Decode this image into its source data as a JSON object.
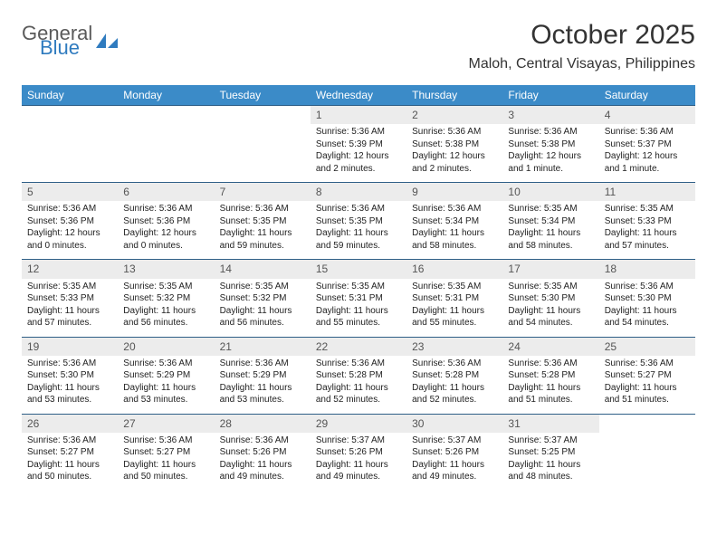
{
  "brand": {
    "text_general": "General",
    "text_blue": "Blue",
    "icon_color": "#2f7bbf",
    "text_general_color": "#5a5a5a",
    "text_blue_color": "#2f7bbf"
  },
  "title": "October 2025",
  "location": "Maloh, Central Visayas, Philippines",
  "colors": {
    "header_bg": "#3b8bc8",
    "header_text": "#ffffff",
    "daynum_bg": "#ececec",
    "daynum_text": "#555555",
    "row_border": "#2f5f87",
    "body_text": "#222222",
    "page_bg": "#ffffff"
  },
  "day_headers": [
    "Sunday",
    "Monday",
    "Tuesday",
    "Wednesday",
    "Thursday",
    "Friday",
    "Saturday"
  ],
  "weeks": [
    {
      "nums": [
        "",
        "",
        "",
        "1",
        "2",
        "3",
        "4"
      ],
      "cells": [
        null,
        null,
        null,
        {
          "sunrise": "Sunrise: 5:36 AM",
          "sunset": "Sunset: 5:39 PM",
          "daylight": "Daylight: 12 hours and 2 minutes."
        },
        {
          "sunrise": "Sunrise: 5:36 AM",
          "sunset": "Sunset: 5:38 PM",
          "daylight": "Daylight: 12 hours and 2 minutes."
        },
        {
          "sunrise": "Sunrise: 5:36 AM",
          "sunset": "Sunset: 5:38 PM",
          "daylight": "Daylight: 12 hours and 1 minute."
        },
        {
          "sunrise": "Sunrise: 5:36 AM",
          "sunset": "Sunset: 5:37 PM",
          "daylight": "Daylight: 12 hours and 1 minute."
        }
      ]
    },
    {
      "nums": [
        "5",
        "6",
        "7",
        "8",
        "9",
        "10",
        "11"
      ],
      "cells": [
        {
          "sunrise": "Sunrise: 5:36 AM",
          "sunset": "Sunset: 5:36 PM",
          "daylight": "Daylight: 12 hours and 0 minutes."
        },
        {
          "sunrise": "Sunrise: 5:36 AM",
          "sunset": "Sunset: 5:36 PM",
          "daylight": "Daylight: 12 hours and 0 minutes."
        },
        {
          "sunrise": "Sunrise: 5:36 AM",
          "sunset": "Sunset: 5:35 PM",
          "daylight": "Daylight: 11 hours and 59 minutes."
        },
        {
          "sunrise": "Sunrise: 5:36 AM",
          "sunset": "Sunset: 5:35 PM",
          "daylight": "Daylight: 11 hours and 59 minutes."
        },
        {
          "sunrise": "Sunrise: 5:36 AM",
          "sunset": "Sunset: 5:34 PM",
          "daylight": "Daylight: 11 hours and 58 minutes."
        },
        {
          "sunrise": "Sunrise: 5:35 AM",
          "sunset": "Sunset: 5:34 PM",
          "daylight": "Daylight: 11 hours and 58 minutes."
        },
        {
          "sunrise": "Sunrise: 5:35 AM",
          "sunset": "Sunset: 5:33 PM",
          "daylight": "Daylight: 11 hours and 57 minutes."
        }
      ]
    },
    {
      "nums": [
        "12",
        "13",
        "14",
        "15",
        "16",
        "17",
        "18"
      ],
      "cells": [
        {
          "sunrise": "Sunrise: 5:35 AM",
          "sunset": "Sunset: 5:33 PM",
          "daylight": "Daylight: 11 hours and 57 minutes."
        },
        {
          "sunrise": "Sunrise: 5:35 AM",
          "sunset": "Sunset: 5:32 PM",
          "daylight": "Daylight: 11 hours and 56 minutes."
        },
        {
          "sunrise": "Sunrise: 5:35 AM",
          "sunset": "Sunset: 5:32 PM",
          "daylight": "Daylight: 11 hours and 56 minutes."
        },
        {
          "sunrise": "Sunrise: 5:35 AM",
          "sunset": "Sunset: 5:31 PM",
          "daylight": "Daylight: 11 hours and 55 minutes."
        },
        {
          "sunrise": "Sunrise: 5:35 AM",
          "sunset": "Sunset: 5:31 PM",
          "daylight": "Daylight: 11 hours and 55 minutes."
        },
        {
          "sunrise": "Sunrise: 5:35 AM",
          "sunset": "Sunset: 5:30 PM",
          "daylight": "Daylight: 11 hours and 54 minutes."
        },
        {
          "sunrise": "Sunrise: 5:36 AM",
          "sunset": "Sunset: 5:30 PM",
          "daylight": "Daylight: 11 hours and 54 minutes."
        }
      ]
    },
    {
      "nums": [
        "19",
        "20",
        "21",
        "22",
        "23",
        "24",
        "25"
      ],
      "cells": [
        {
          "sunrise": "Sunrise: 5:36 AM",
          "sunset": "Sunset: 5:30 PM",
          "daylight": "Daylight: 11 hours and 53 minutes."
        },
        {
          "sunrise": "Sunrise: 5:36 AM",
          "sunset": "Sunset: 5:29 PM",
          "daylight": "Daylight: 11 hours and 53 minutes."
        },
        {
          "sunrise": "Sunrise: 5:36 AM",
          "sunset": "Sunset: 5:29 PM",
          "daylight": "Daylight: 11 hours and 53 minutes."
        },
        {
          "sunrise": "Sunrise: 5:36 AM",
          "sunset": "Sunset: 5:28 PM",
          "daylight": "Daylight: 11 hours and 52 minutes."
        },
        {
          "sunrise": "Sunrise: 5:36 AM",
          "sunset": "Sunset: 5:28 PM",
          "daylight": "Daylight: 11 hours and 52 minutes."
        },
        {
          "sunrise": "Sunrise: 5:36 AM",
          "sunset": "Sunset: 5:28 PM",
          "daylight": "Daylight: 11 hours and 51 minutes."
        },
        {
          "sunrise": "Sunrise: 5:36 AM",
          "sunset": "Sunset: 5:27 PM",
          "daylight": "Daylight: 11 hours and 51 minutes."
        }
      ]
    },
    {
      "nums": [
        "26",
        "27",
        "28",
        "29",
        "30",
        "31",
        ""
      ],
      "cells": [
        {
          "sunrise": "Sunrise: 5:36 AM",
          "sunset": "Sunset: 5:27 PM",
          "daylight": "Daylight: 11 hours and 50 minutes."
        },
        {
          "sunrise": "Sunrise: 5:36 AM",
          "sunset": "Sunset: 5:27 PM",
          "daylight": "Daylight: 11 hours and 50 minutes."
        },
        {
          "sunrise": "Sunrise: 5:36 AM",
          "sunset": "Sunset: 5:26 PM",
          "daylight": "Daylight: 11 hours and 49 minutes."
        },
        {
          "sunrise": "Sunrise: 5:37 AM",
          "sunset": "Sunset: 5:26 PM",
          "daylight": "Daylight: 11 hours and 49 minutes."
        },
        {
          "sunrise": "Sunrise: 5:37 AM",
          "sunset": "Sunset: 5:26 PM",
          "daylight": "Daylight: 11 hours and 49 minutes."
        },
        {
          "sunrise": "Sunrise: 5:37 AM",
          "sunset": "Sunset: 5:25 PM",
          "daylight": "Daylight: 11 hours and 48 minutes."
        },
        null
      ]
    }
  ]
}
